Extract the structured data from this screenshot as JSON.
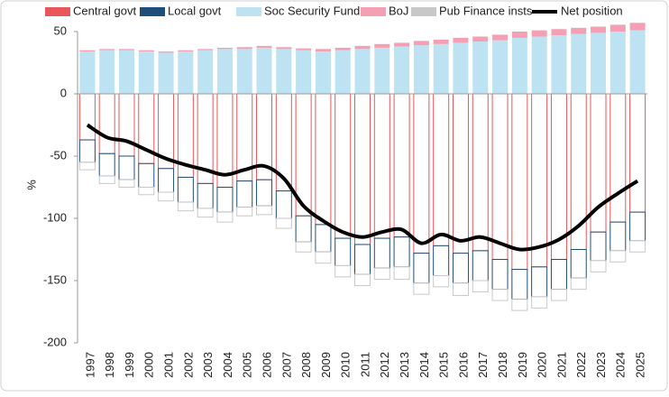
{
  "chart_data": {
    "type": "stacked_bar_line",
    "y_label": "%",
    "categories": [
      "1997",
      "1998",
      "1999",
      "2000",
      "2001",
      "2002",
      "2003",
      "2004",
      "2005",
      "2006",
      "2007",
      "2008",
      "2009",
      "2010",
      "2011",
      "2012",
      "2013",
      "2014",
      "2015",
      "2016",
      "2017",
      "2018",
      "2019",
      "2020",
      "2021",
      "2022",
      "2023",
      "2024",
      "2025"
    ],
    "series": [
      {
        "name": "Central govt",
        "color": "#e8575a",
        "values": [
          -37,
          -48,
          -50,
          -56,
          -60,
          -67,
          -72,
          -75,
          -70,
          -69,
          -78,
          -98,
          -105,
          -116,
          -121,
          -116,
          -115,
          -128,
          -122,
          -128,
          -126,
          -133,
          -141,
          -139,
          -133,
          -125,
          -111,
          -103,
          -95
        ]
      },
      {
        "name": "Local govt",
        "color": "#1f4e79",
        "values": [
          -18,
          -18,
          -19,
          -19,
          -19,
          -20,
          -20,
          -20,
          -21,
          -21,
          -22,
          -21,
          -22,
          -22,
          -24,
          -24,
          -24,
          -24,
          -24,
          -24,
          -24,
          -24,
          -24,
          -24,
          -24,
          -23,
          -23,
          -23,
          -23
        ]
      },
      {
        "name": "Soc Security Funds",
        "color": "#bde3f2",
        "values": [
          34,
          35,
          35,
          34,
          33,
          34,
          35,
          36,
          36,
          37,
          36,
          35,
          34,
          35,
          36,
          37,
          38,
          39,
          40,
          41,
          42,
          43,
          45,
          46,
          47,
          48,
          49,
          50,
          51
        ]
      },
      {
        "name": "BoJ",
        "color": "#f4a0b4",
        "values": [
          1,
          1,
          1,
          1,
          1,
          1,
          1,
          1,
          1.5,
          1.5,
          1.5,
          1.5,
          2,
          2,
          2.5,
          3,
          3,
          3.5,
          3.5,
          4,
          4,
          4.5,
          5,
          5,
          5,
          5,
          5,
          5.5,
          6
        ]
      },
      {
        "name": "Pub Finance insts",
        "color": "#c8c8c8",
        "values": [
          -6,
          -6,
          -6,
          -6,
          -7,
          -7,
          -7,
          -8,
          -7,
          -7,
          -8,
          -8,
          -9,
          -9,
          -9,
          -9,
          -10,
          -9,
          -9,
          -10,
          -9,
          -9,
          -9,
          -9,
          -9,
          -9,
          -9,
          -9,
          -9
        ]
      },
      {
        "name": "Net position",
        "type": "line",
        "color": "#000000",
        "values": [
          -25,
          -35,
          -38,
          -45,
          -52,
          -57,
          -61,
          -65,
          -61,
          -58,
          -68,
          -90,
          -102,
          -111,
          -115,
          -111,
          -109,
          -120,
          -113,
          -118,
          -115,
          -120,
          -125,
          -123,
          -117,
          -106,
          -91,
          -80,
          -70
        ]
      }
    ],
    "ylim": [
      -200,
      50
    ],
    "yticks": [
      -200,
      -150,
      -100,
      -50,
      0,
      50
    ],
    "legend": "top"
  }
}
